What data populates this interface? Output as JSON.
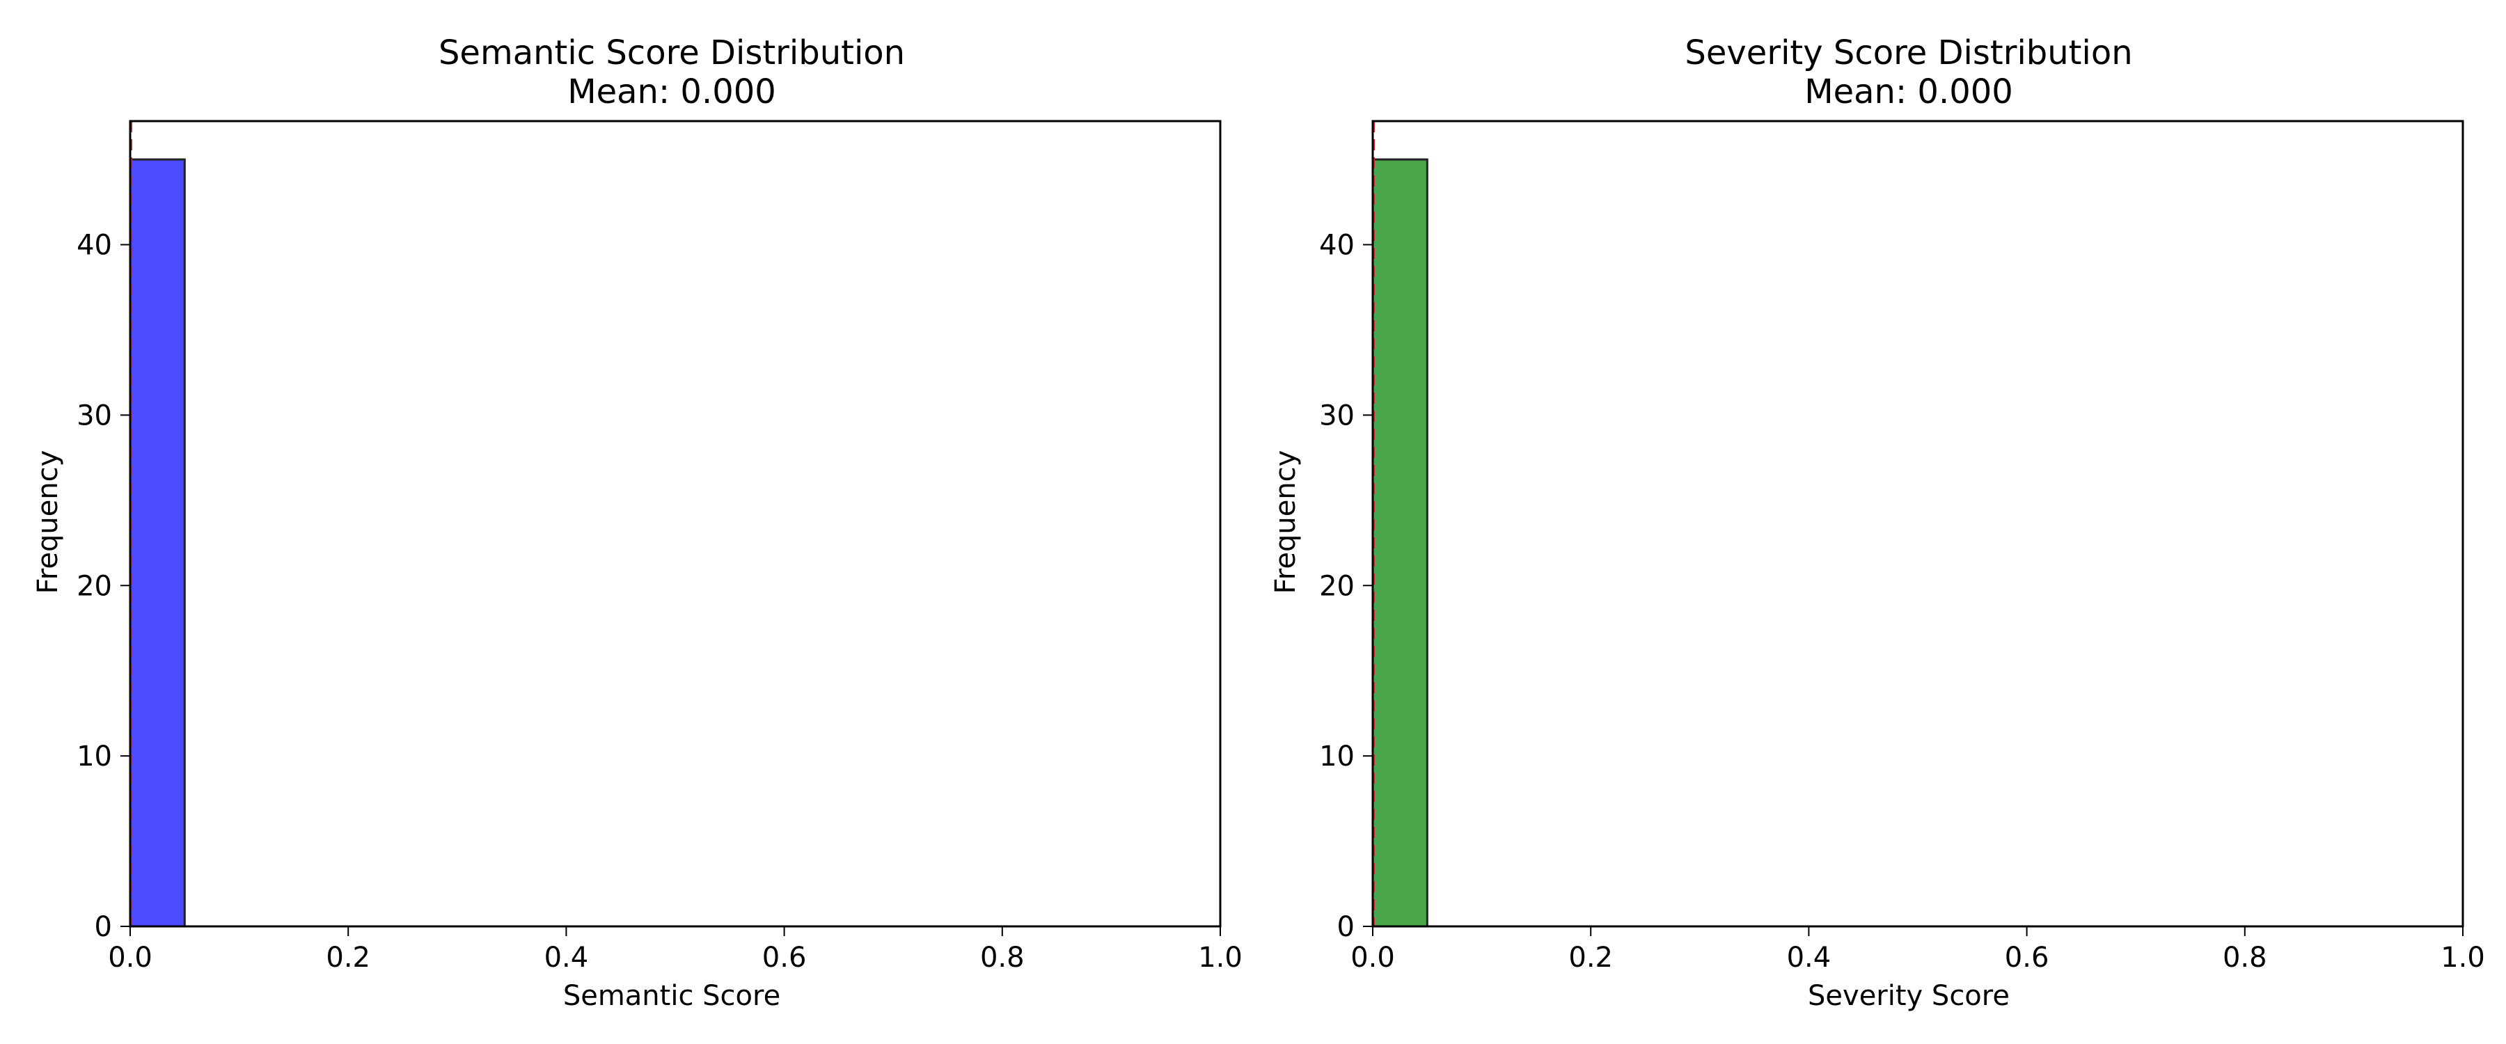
{
  "chart_data": [
    {
      "type": "bar",
      "title": "Semantic Score Distribution",
      "subtitle": "Mean: 0.000",
      "xlabel": "Semantic Score",
      "ylabel": "Frequency",
      "xlim": [
        0.0,
        1.0
      ],
      "ylim": [
        0,
        47.25
      ],
      "xticks": [
        "0.0",
        "0.2",
        "0.4",
        "0.6",
        "0.8",
        "1.0"
      ],
      "yticks": [
        "0",
        "10",
        "20",
        "30",
        "40"
      ],
      "bin_width": 0.05,
      "bins": [
        {
          "x0": 0.0,
          "x1": 0.05,
          "count": 45
        },
        {
          "x0": 0.05,
          "x1": 0.1,
          "count": 0
        },
        {
          "x0": 0.1,
          "x1": 0.15,
          "count": 0
        },
        {
          "x0": 0.15,
          "x1": 0.2,
          "count": 0
        },
        {
          "x0": 0.2,
          "x1": 0.25,
          "count": 0
        },
        {
          "x0": 0.25,
          "x1": 0.3,
          "count": 0
        },
        {
          "x0": 0.3,
          "x1": 0.35,
          "count": 0
        },
        {
          "x0": 0.35,
          "x1": 0.4,
          "count": 0
        },
        {
          "x0": 0.4,
          "x1": 0.45,
          "count": 0
        },
        {
          "x0": 0.45,
          "x1": 0.5,
          "count": 0
        }
      ],
      "mean_line": 0.0,
      "bar_color": "#4b4bff",
      "edge_color": "#222222",
      "mean_line_color": "#d62728",
      "grid": false,
      "legend": "none"
    },
    {
      "type": "bar",
      "title": "Severity Score Distribution",
      "subtitle": "Mean: 0.000",
      "xlabel": "Severity Score",
      "ylabel": "Frequency",
      "xlim": [
        0.0,
        1.0
      ],
      "ylim": [
        0,
        47.25
      ],
      "xticks": [
        "0.0",
        "0.2",
        "0.4",
        "0.6",
        "0.8",
        "1.0"
      ],
      "yticks": [
        "0",
        "10",
        "20",
        "30",
        "40"
      ],
      "bin_width": 0.05,
      "bins": [
        {
          "x0": 0.0,
          "x1": 0.05,
          "count": 45
        },
        {
          "x0": 0.05,
          "x1": 0.1,
          "count": 0
        },
        {
          "x0": 0.1,
          "x1": 0.15,
          "count": 0
        },
        {
          "x0": 0.15,
          "x1": 0.2,
          "count": 0
        },
        {
          "x0": 0.2,
          "x1": 0.25,
          "count": 0
        },
        {
          "x0": 0.25,
          "x1": 0.3,
          "count": 0
        },
        {
          "x0": 0.3,
          "x1": 0.35,
          "count": 0
        },
        {
          "x0": 0.35,
          "x1": 0.4,
          "count": 0
        },
        {
          "x0": 0.4,
          "x1": 0.45,
          "count": 0
        },
        {
          "x0": 0.45,
          "x1": 0.5,
          "count": 0
        }
      ],
      "mean_line": 0.0,
      "bar_color": "#4aa64a",
      "edge_color": "#222222",
      "mean_line_color": "#d62728",
      "grid": false,
      "legend": "none"
    }
  ]
}
